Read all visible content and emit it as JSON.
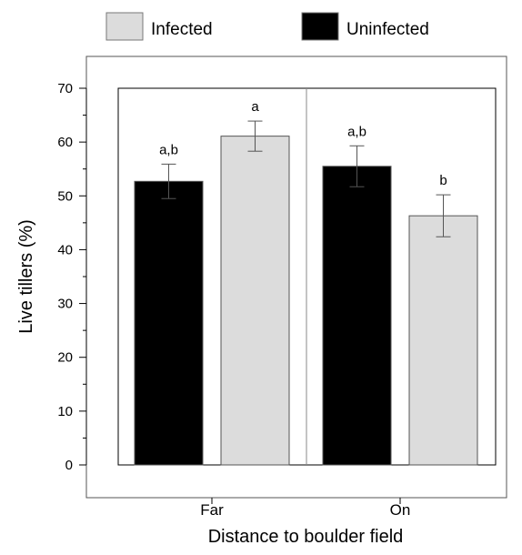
{
  "chart_data": {
    "type": "bar",
    "title": "",
    "xlabel": "Distance to boulder field",
    "ylabel": "Live tillers (%)",
    "ylim": [
      0,
      70
    ],
    "yticks": [
      0,
      10,
      20,
      30,
      40,
      50,
      60,
      70
    ],
    "categories": [
      "Far",
      "On"
    ],
    "series": [
      {
        "name": "Uninfected",
        "color": "#000000",
        "values": [
          52.7,
          55.5
        ],
        "errors": [
          3.2,
          3.8
        ],
        "significance": [
          "a,b",
          "a,b"
        ]
      },
      {
        "name": "Infected",
        "color": "#dcdcdc",
        "values": [
          61.1,
          46.3
        ],
        "errors": [
          2.8,
          3.9
        ],
        "significance": [
          "a",
          "b"
        ]
      }
    ],
    "legend": {
      "position": "top",
      "order": [
        "Infected",
        "Uninfected"
      ]
    },
    "grid": false
  }
}
